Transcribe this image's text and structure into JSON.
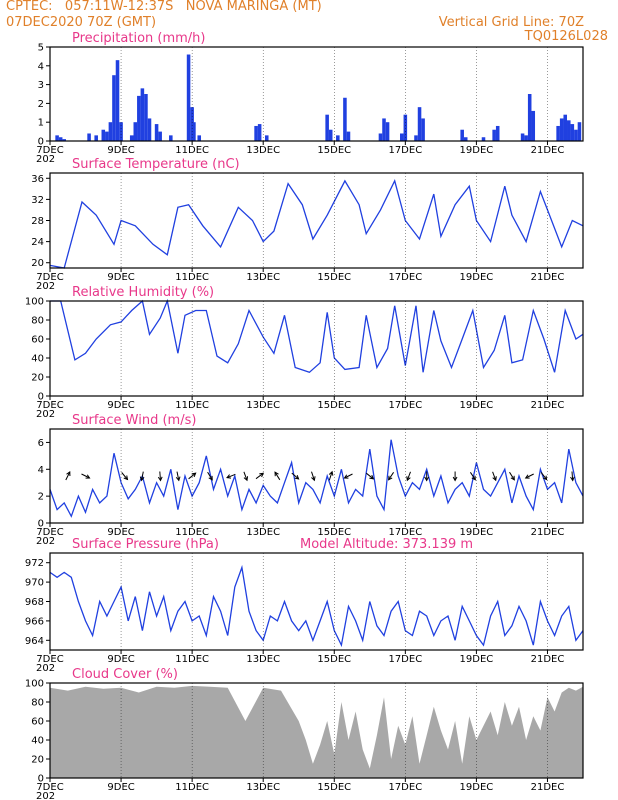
{
  "header": {
    "station_line": "CPTEC:   057:11W-12:37S   NOVA MARINGA (MT)",
    "date_line": "07DEC2020 70Z (GMT)",
    "grid_line": "Vertical Grid Line: 70Z",
    "code": "TQ0126L028"
  },
  "colors": {
    "header": "#e0802a",
    "title": "#e8388a",
    "line": "#2040e0",
    "cloud": "#a8a8a8"
  },
  "x_axis": {
    "start_day": 7,
    "end_day": 22,
    "tick_days": [
      7,
      9,
      11,
      13,
      15,
      17,
      19,
      21
    ],
    "tick_labels": [
      "7DEC",
      "9DEC",
      "11DEC",
      "13DEC",
      "15DEC",
      "17DEC",
      "19DEC",
      "21DEC"
    ],
    "year_stub": "202"
  },
  "chart_data": [
    {
      "type": "bar",
      "title": "Precipitation (mm/h)",
      "ylim": [
        0,
        5
      ],
      "yticks": [
        0,
        1,
        2,
        3,
        4,
        5
      ],
      "series": [
        {
          "x": [
            7.2,
            7.3,
            7.4,
            8.1,
            8.3,
            8.5,
            8.6,
            8.7,
            8.8,
            8.9,
            9.0,
            9.3,
            9.4,
            9.5,
            9.6,
            9.7,
            9.8,
            10.0,
            10.1,
            10.4,
            10.9,
            11.0,
            11.05,
            11.2,
            12.8,
            12.9,
            13.1,
            14.8,
            14.9,
            15.1,
            15.3,
            15.4,
            16.3,
            16.4,
            16.5,
            16.9,
            17.0,
            17.3,
            17.4,
            17.5,
            18.6,
            18.7,
            19.2,
            19.5,
            19.6,
            20.3,
            20.4,
            20.5,
            20.6,
            21.3,
            21.4,
            21.5,
            21.6,
            21.7,
            21.8,
            21.9
          ],
          "values": [
            0.3,
            0.2,
            0.1,
            0.4,
            0.3,
            0.6,
            0.5,
            1.0,
            3.5,
            4.3,
            1.0,
            0.3,
            1.0,
            2.4,
            2.8,
            2.5,
            1.2,
            0.9,
            0.5,
            0.3,
            4.6,
            1.8,
            1.0,
            0.3,
            0.8,
            0.9,
            0.3,
            1.4,
            0.6,
            0.3,
            2.3,
            0.5,
            0.4,
            1.2,
            1.0,
            0.4,
            1.4,
            0.3,
            1.8,
            1.2,
            0.6,
            0.2,
            0.2,
            0.6,
            0.8,
            0.4,
            0.3,
            2.5,
            1.6,
            0.8,
            1.2,
            1.4,
            1.1,
            0.9,
            0.6,
            1.0
          ]
        }
      ]
    },
    {
      "type": "line",
      "title": "Surface Temperature (nC)",
      "ylim": [
        19,
        37
      ],
      "yticks": [
        20,
        24,
        28,
        32,
        36
      ],
      "series": [
        {
          "x": [
            7.0,
            7.4,
            7.9,
            8.3,
            8.8,
            9.0,
            9.4,
            9.9,
            10.3,
            10.6,
            10.9,
            11.3,
            11.8,
            12.3,
            12.7,
            13.0,
            13.3,
            13.7,
            14.1,
            14.4,
            14.8,
            15.3,
            15.7,
            15.9,
            16.3,
            16.7,
            17.0,
            17.4,
            17.8,
            18.0,
            18.4,
            18.8,
            19.0,
            19.4,
            19.8,
            20.0,
            20.4,
            20.8,
            21.0,
            21.4,
            21.7,
            22.0
          ],
          "values": [
            19.5,
            19.0,
            31.5,
            29.0,
            23.5,
            28.0,
            27.0,
            23.5,
            21.5,
            30.5,
            31.0,
            27.0,
            23.0,
            30.5,
            28.0,
            24.0,
            26.0,
            35.0,
            31.0,
            24.5,
            29.0,
            35.5,
            31.0,
            25.5,
            30.0,
            35.5,
            28.0,
            24.5,
            33.0,
            25.0,
            31.0,
            34.5,
            28.0,
            24.0,
            34.5,
            29.0,
            24.0,
            33.5,
            30.0,
            23.0,
            28.0,
            27.0
          ]
        }
      ]
    },
    {
      "type": "line",
      "title": "Relative Humidity (%)",
      "ylim": [
        0,
        100
      ],
      "yticks": [
        0,
        20,
        40,
        60,
        80,
        100
      ],
      "series": [
        {
          "x": [
            7.0,
            7.3,
            7.7,
            8.0,
            8.3,
            8.7,
            9.0,
            9.3,
            9.6,
            9.8,
            10.1,
            10.3,
            10.6,
            10.8,
            11.1,
            11.4,
            11.7,
            12.0,
            12.3,
            12.6,
            13.0,
            13.3,
            13.6,
            13.9,
            14.3,
            14.6,
            14.8,
            15.0,
            15.3,
            15.7,
            15.9,
            16.2,
            16.5,
            16.7,
            17.0,
            17.3,
            17.5,
            17.8,
            18.0,
            18.3,
            18.6,
            18.9,
            19.2,
            19.5,
            19.8,
            20.0,
            20.3,
            20.6,
            20.9,
            21.2,
            21.5,
            21.8,
            22.0
          ],
          "values": [
            100,
            100,
            38,
            45,
            60,
            75,
            78,
            90,
            100,
            65,
            82,
            100,
            45,
            85,
            90,
            90,
            42,
            35,
            55,
            90,
            62,
            45,
            85,
            30,
            25,
            35,
            88,
            40,
            28,
            30,
            85,
            30,
            50,
            95,
            32,
            95,
            25,
            90,
            58,
            30,
            60,
            90,
            30,
            48,
            85,
            35,
            38,
            90,
            60,
            25,
            90,
            60,
            65
          ]
        }
      ]
    },
    {
      "type": "line",
      "title": "Surface Wind (m/s)",
      "ylim": [
        0,
        7
      ],
      "yticks": [
        0,
        2,
        4,
        6
      ],
      "series": [
        {
          "x": [
            7.0,
            7.2,
            7.4,
            7.6,
            7.8,
            8.0,
            8.2,
            8.4,
            8.6,
            8.8,
            9.0,
            9.2,
            9.4,
            9.6,
            9.8,
            10.0,
            10.2,
            10.4,
            10.6,
            10.8,
            11.0,
            11.2,
            11.4,
            11.6,
            11.8,
            12.0,
            12.2,
            12.4,
            12.6,
            12.8,
            13.0,
            13.2,
            13.4,
            13.6,
            13.8,
            14.0,
            14.2,
            14.4,
            14.6,
            14.8,
            15.0,
            15.2,
            15.4,
            15.6,
            15.8,
            16.0,
            16.2,
            16.4,
            16.6,
            16.8,
            17.0,
            17.2,
            17.4,
            17.6,
            17.8,
            18.0,
            18.2,
            18.4,
            18.6,
            18.8,
            19.0,
            19.2,
            19.4,
            19.6,
            19.8,
            20.0,
            20.2,
            20.4,
            20.6,
            20.8,
            21.0,
            21.2,
            21.4,
            21.6,
            21.8,
            22.0
          ],
          "values": [
            2.5,
            1.0,
            1.5,
            0.5,
            2.0,
            0.8,
            2.5,
            1.5,
            2.0,
            5.2,
            3.0,
            1.8,
            2.5,
            3.5,
            1.5,
            3.0,
            2.0,
            4.0,
            1.0,
            3.5,
            2.0,
            3.0,
            5.0,
            2.5,
            4.0,
            2.0,
            3.5,
            1.0,
            2.5,
            1.5,
            2.8,
            2.0,
            1.5,
            3.0,
            4.5,
            1.5,
            3.0,
            2.5,
            1.5,
            3.5,
            2.0,
            4.0,
            1.5,
            2.5,
            2.0,
            5.5,
            2.0,
            1.0,
            6.2,
            3.5,
            2.0,
            3.0,
            2.5,
            4.0,
            2.0,
            3.5,
            1.5,
            2.5,
            3.0,
            2.0,
            4.5,
            2.5,
            2.0,
            3.0,
            4.0,
            1.5,
            3.5,
            2.0,
            1.0,
            4.0,
            2.5,
            3.0,
            1.5,
            5.5,
            3.0,
            2.0
          ]
        }
      ],
      "arrows": [
        {
          "x": 7.5,
          "u": 0.3,
          "v": 0.6
        },
        {
          "x": 8.0,
          "u": 0.4,
          "v": -0.2
        },
        {
          "x": 9.1,
          "u": 0.5,
          "v": -0.6
        },
        {
          "x": 9.6,
          "u": -0.2,
          "v": -1.0
        },
        {
          "x": 10.1,
          "u": 0.1,
          "v": -1.2
        },
        {
          "x": 10.6,
          "u": 0.2,
          "v": -1.0
        },
        {
          "x": 11.0,
          "u": 1.0,
          "v": 0.8
        },
        {
          "x": 11.5,
          "u": 0.6,
          "v": -1.0
        },
        {
          "x": 12.1,
          "u": -1.0,
          "v": -0.4
        },
        {
          "x": 12.5,
          "u": 0.3,
          "v": -0.8
        },
        {
          "x": 12.9,
          "u": 0.8,
          "v": 0.6
        },
        {
          "x": 13.4,
          "u": -0.5,
          "v": 0.8
        },
        {
          "x": 13.9,
          "u": 0.7,
          "v": -0.6
        },
        {
          "x": 14.4,
          "u": 0.2,
          "v": -0.6
        },
        {
          "x": 14.9,
          "u": 0.3,
          "v": 0.9
        },
        {
          "x": 15.4,
          "u": -0.6,
          "v": -0.3
        },
        {
          "x": 16.0,
          "u": 0.5,
          "v": -0.4
        },
        {
          "x": 16.6,
          "u": -0.6,
          "v": -0.9
        },
        {
          "x": 17.1,
          "u": -0.3,
          "v": -0.8
        },
        {
          "x": 17.6,
          "u": 0.0,
          "v": -1.2
        },
        {
          "x": 18.4,
          "u": 0.0,
          "v": -1.5
        },
        {
          "x": 18.9,
          "u": 0.4,
          "v": -0.6
        },
        {
          "x": 19.5,
          "u": 0.3,
          "v": -0.8
        },
        {
          "x": 20.0,
          "u": 0.5,
          "v": -0.8
        },
        {
          "x": 20.5,
          "u": -1.2,
          "v": -0.6
        },
        {
          "x": 20.9,
          "u": 0.6,
          "v": -0.8
        },
        {
          "x": 21.7,
          "u": 0.1,
          "v": -1.2
        }
      ]
    },
    {
      "type": "line",
      "title": "Surface Pressure (hPa)",
      "subtitle": "Model Altitude: 373.139 m",
      "ylim": [
        963,
        973
      ],
      "yticks": [
        964,
        966,
        968,
        970,
        972
      ],
      "series": [
        {
          "x": [
            7.0,
            7.2,
            7.4,
            7.6,
            7.8,
            8.0,
            8.2,
            8.4,
            8.6,
            8.8,
            9.0,
            9.2,
            9.4,
            9.6,
            9.8,
            10.0,
            10.2,
            10.4,
            10.6,
            10.8,
            11.0,
            11.2,
            11.4,
            11.6,
            11.8,
            12.0,
            12.2,
            12.4,
            12.6,
            12.8,
            13.0,
            13.2,
            13.4,
            13.6,
            13.8,
            14.0,
            14.2,
            14.4,
            14.6,
            14.8,
            15.0,
            15.2,
            15.4,
            15.6,
            15.8,
            16.0,
            16.2,
            16.4,
            16.6,
            16.8,
            17.0,
            17.2,
            17.4,
            17.6,
            17.8,
            18.0,
            18.2,
            18.4,
            18.6,
            18.8,
            19.0,
            19.2,
            19.4,
            19.6,
            19.8,
            20.0,
            20.2,
            20.4,
            20.6,
            20.8,
            21.0,
            21.2,
            21.4,
            21.6,
            21.8,
            22.0
          ],
          "values": [
            971,
            970.5,
            971,
            970.5,
            968,
            966,
            964.5,
            968,
            966.5,
            968,
            969.5,
            966,
            968.5,
            965,
            969,
            966.5,
            968.5,
            965,
            967,
            968,
            966,
            966.5,
            964.5,
            968.5,
            967,
            964.5,
            969.5,
            971.5,
            967,
            965,
            964,
            966.5,
            966,
            968,
            966,
            965,
            966,
            964,
            966,
            968,
            965,
            963.5,
            967.5,
            966,
            964,
            968,
            965.5,
            964.5,
            967,
            968,
            965,
            964.5,
            967,
            966.5,
            964.5,
            966,
            966.5,
            964,
            967.5,
            966,
            964.5,
            963.5,
            966.5,
            968,
            964.5,
            965.5,
            967.5,
            966,
            963.5,
            968,
            966,
            964.5,
            966.5,
            967.5,
            964,
            965
          ]
        }
      ]
    },
    {
      "type": "area",
      "title": "Cloud Cover (%)",
      "ylim": [
        0,
        100
      ],
      "yticks": [
        0,
        20,
        40,
        60,
        80,
        100
      ],
      "series": [
        {
          "x": [
            7.0,
            7.5,
            8.0,
            8.5,
            9.0,
            9.5,
            10.0,
            10.5,
            11.0,
            11.5,
            12.0,
            12.5,
            13.0,
            13.5,
            14.0,
            14.2,
            14.4,
            14.6,
            14.8,
            15.0,
            15.2,
            15.4,
            15.6,
            15.8,
            16.0,
            16.2,
            16.4,
            16.6,
            16.8,
            17.0,
            17.2,
            17.4,
            17.6,
            17.8,
            18.0,
            18.2,
            18.4,
            18.6,
            18.8,
            19.0,
            19.2,
            19.4,
            19.6,
            19.8,
            20.0,
            20.2,
            20.4,
            20.6,
            20.8,
            21.0,
            21.2,
            21.4,
            21.6,
            21.8,
            22.0
          ],
          "values": [
            95,
            92,
            96,
            94,
            95,
            90,
            96,
            95,
            97,
            96,
            95,
            60,
            95,
            92,
            60,
            40,
            15,
            35,
            60,
            25,
            80,
            40,
            70,
            30,
            10,
            45,
            85,
            20,
            55,
            35,
            65,
            15,
            45,
            75,
            50,
            30,
            60,
            15,
            65,
            40,
            55,
            70,
            45,
            80,
            55,
            75,
            40,
            65,
            50,
            85,
            70,
            90,
            95,
            92,
            96
          ]
        }
      ]
    }
  ]
}
